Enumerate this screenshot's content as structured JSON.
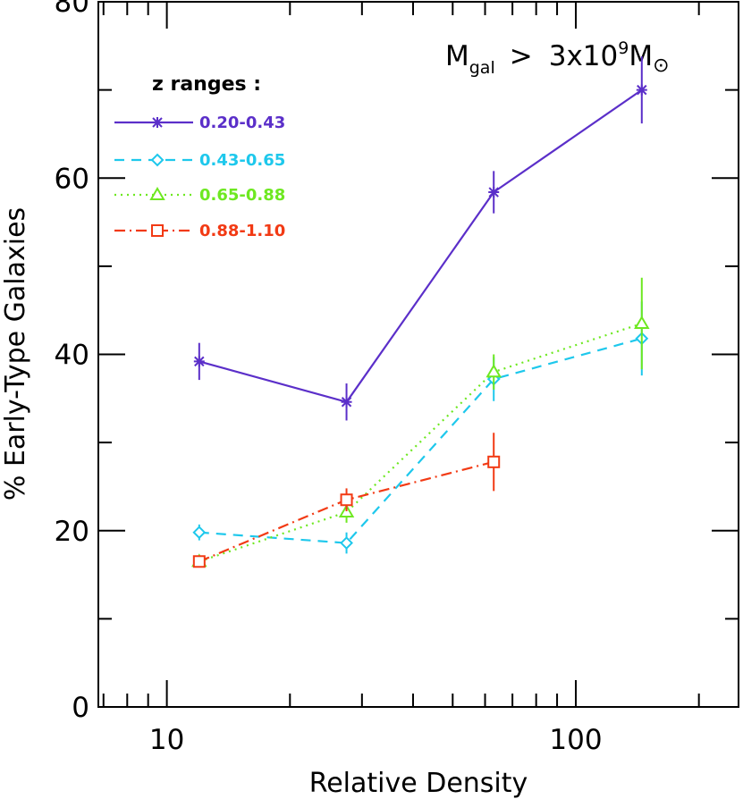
{
  "chart_data": {
    "type": "line",
    "title": "",
    "xlabel": "Relative Density",
    "ylabel": "% Early-Type Galaxies",
    "xscale": "log",
    "xlim": [
      6.8,
      250
    ],
    "ylim": [
      0,
      80
    ],
    "x_tick_labels": [
      "10",
      "100"
    ],
    "y_tick_labels": [
      "0",
      "20",
      "40",
      "60",
      "80"
    ],
    "grid": false,
    "legend_title": "z ranges :",
    "legend_position": "top-left",
    "annotation": {
      "main": "M",
      "sub": "gal",
      "relation": ">",
      "coef": "3x10",
      "sup": "9",
      "unit": "M",
      "unit_symbol": "⊙"
    },
    "series": [
      {
        "name": "0.20-0.43",
        "color": "#5b2fc9",
        "marker": "asterisk",
        "line_style": "solid",
        "x": [
          12,
          27.5,
          63,
          145
        ],
        "y": [
          39.2,
          34.6,
          58.4,
          70.0
        ],
        "yerr": [
          2.1,
          2.1,
          2.4,
          3.8
        ]
      },
      {
        "name": "0.43-0.65",
        "color": "#1ec8ec",
        "marker": "diamond",
        "line_style": "dashed",
        "x": [
          12,
          27.5,
          63,
          145
        ],
        "y": [
          19.8,
          18.6,
          37.2,
          41.8
        ],
        "yerr": [
          0.9,
          1.2,
          2.5,
          4.2
        ]
      },
      {
        "name": "0.65-0.88",
        "color": "#6ee821",
        "marker": "triangle",
        "line_style": "dotted",
        "x": [
          12,
          27.5,
          63,
          145
        ],
        "y": [
          16.5,
          22.1,
          38.0,
          43.5
        ],
        "yerr": [
          0.6,
          1.2,
          2.0,
          5.2
        ]
      },
      {
        "name": "0.88-1.10",
        "color": "#f23a14",
        "marker": "square",
        "line_style": "dashdot",
        "x": [
          12,
          27.5,
          63
        ],
        "y": [
          16.5,
          23.5,
          27.8
        ],
        "yerr": [
          0.6,
          1.3,
          3.3
        ]
      }
    ]
  }
}
